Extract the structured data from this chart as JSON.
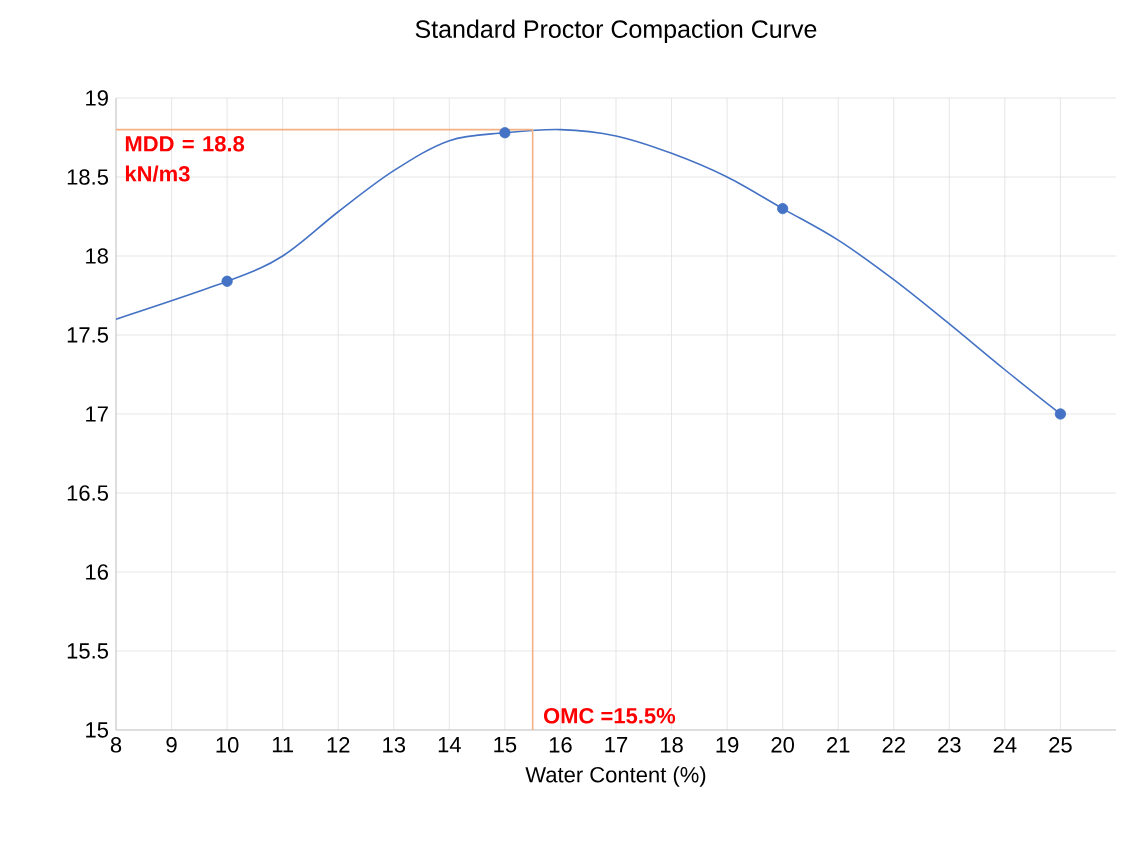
{
  "chart_data": {
    "type": "line",
    "title": "Standard Proctor Compaction Curve",
    "xlabel": "Water Content (%)",
    "xlim": [
      8,
      26
    ],
    "xticks": [
      8,
      9,
      10,
      11,
      12,
      13,
      14,
      15,
      16,
      17,
      18,
      19,
      20,
      21,
      22,
      23,
      24,
      25
    ],
    "ylim": [
      15,
      19
    ],
    "yticks": [
      15,
      15.5,
      16,
      16.5,
      17,
      17.5,
      18,
      18.5,
      19
    ],
    "grid": true,
    "series": [
      {
        "type": "line",
        "color": "#4472c4",
        "marker": "none",
        "x": [
          8,
          10,
          11,
          12,
          13,
          14,
          15,
          16,
          17,
          18,
          19,
          20,
          21,
          22,
          23,
          24,
          25
        ],
        "values": [
          17.6,
          17.84,
          18.0,
          18.28,
          18.54,
          18.73,
          18.78,
          18.8,
          18.76,
          18.65,
          18.5,
          18.3,
          18.1,
          17.85,
          17.57,
          17.28,
          17.0
        ]
      },
      {
        "type": "scatter",
        "color": "#4472c4",
        "marker": "circle",
        "x": [
          10,
          15,
          20,
          25
        ],
        "values": [
          17.84,
          18.78,
          18.3,
          17.0
        ]
      }
    ],
    "ref_lines": [
      {
        "axis": "y",
        "value": 18.8,
        "label": "MDD = 18.8 kN/m3",
        "color": "#f4b183"
      },
      {
        "axis": "x",
        "value": 15.5,
        "label": "OMC =15.5%",
        "color": "#f4b183"
      }
    ]
  }
}
